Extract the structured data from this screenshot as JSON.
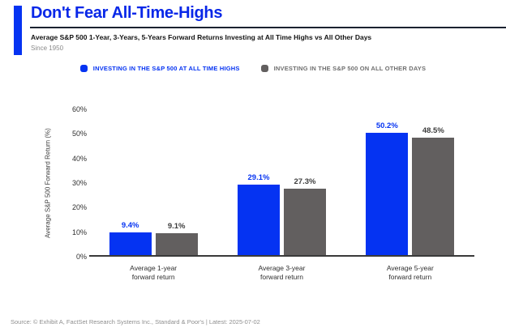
{
  "header": {
    "title": "Don't Fear All-Time-Highs",
    "subtitle": "Average S&P 500 1-Year, 3-Years, 5-Years Forward Returns Investing at All Time Highs vs All Other Days",
    "period": "Since 1950"
  },
  "colors": {
    "brand_blue": "#0827e8",
    "bar_blue": "#0533f2",
    "bar_gray": "#625f5f",
    "legend_gray_text": "#6f6f6f",
    "gray_value_label": "#3d3d3d",
    "rule_navy": "#1b2230"
  },
  "legend": {
    "items": [
      {
        "label": "INVESTING IN THE S&P 500 AT ALL TIME HIGHS",
        "color": "#0533f2",
        "text_color": "#0533f2"
      },
      {
        "label": "INVESTING IN THE S&P 500 ON ALL OTHER DAYS",
        "color": "#625f5f",
        "text_color": "#6f6f6f"
      }
    ]
  },
  "chart_data": {
    "type": "bar",
    "title": "Average S&P 500 1-Year, 3-Years, 5-Years Forward Returns Investing at All Time Highs vs All Other Days",
    "subtitle": "Since 1950",
    "categories": [
      "Average 1-year\nforward return",
      "Average 3-year\nforward return",
      "Average 5-year\nforward return"
    ],
    "series": [
      {
        "name": "INVESTING IN THE S&P 500 AT ALL TIME HIGHS",
        "values": [
          9.4,
          29.1,
          50.2
        ],
        "value_labels": [
          "9.4%",
          "29.1%",
          "50.2%"
        ],
        "color": "#0533f2",
        "label_color": "#0533f2"
      },
      {
        "name": "INVESTING IN THE S&P 500 ON ALL OTHER DAYS",
        "values": [
          9.1,
          27.3,
          48.5
        ],
        "value_labels": [
          "9.1%",
          "27.3%",
          "48.5%"
        ],
        "color": "#625f5f",
        "label_color": "#3d3d3d"
      }
    ],
    "xlabel": "",
    "ylabel": "Average S&P 500 Forward Return (%)",
    "yticks": [
      "60%",
      "50%",
      "40%",
      "30%",
      "20%",
      "10%",
      "0%"
    ],
    "ylim": [
      0,
      60
    ],
    "grid": false,
    "legend_position": "top"
  },
  "footer": {
    "source": "Source: © Exhibit A, FactSet Research Systems Inc., Standard & Poor's | Latest: 2025-07-02"
  }
}
